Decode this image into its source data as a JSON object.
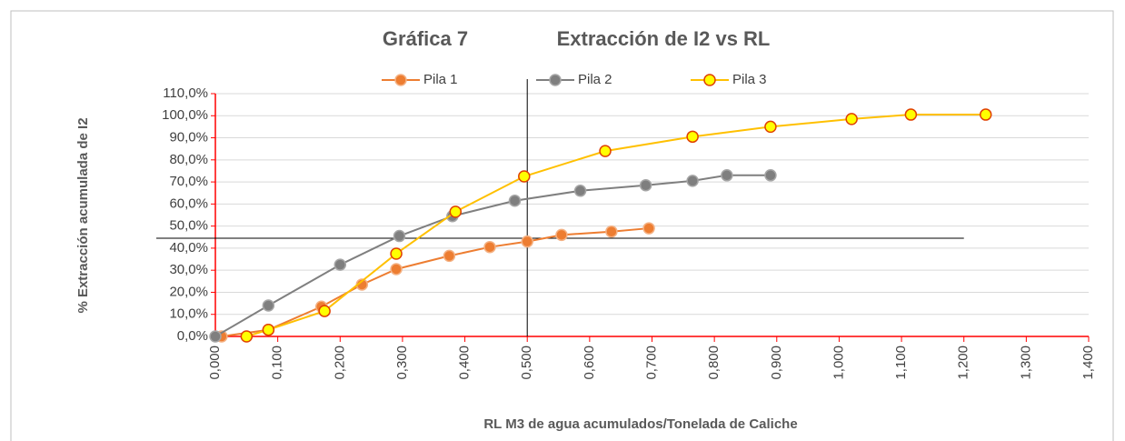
{
  "chart_data": {
    "type": "line",
    "chart_number": "Gráfica 7",
    "title": "Extracción de I2 vs RL",
    "xlabel": "RL   M3  de agua acumulados/Tonelada de Caliche",
    "ylabel": "% Extracción acumulada de I2",
    "xlim": [
      0,
      1.4
    ],
    "xticks": [
      {
        "value": 0,
        "label": "0,000"
      },
      {
        "value": 0.1,
        "label": "0,100"
      },
      {
        "value": 0.2,
        "label": "0,200"
      },
      {
        "value": 0.3,
        "label": "0,300"
      },
      {
        "value": 0.4,
        "label": "0,400"
      },
      {
        "value": 0.5,
        "label": "0,500"
      },
      {
        "value": 0.6,
        "label": "0,600"
      },
      {
        "value": 0.7,
        "label": "0,700"
      },
      {
        "value": 0.8,
        "label": "0,800"
      },
      {
        "value": 0.9,
        "label": "0,900"
      },
      {
        "value": 1.0,
        "label": "1,000"
      },
      {
        "value": 1.1,
        "label": "1,100"
      },
      {
        "value": 1.2,
        "label": "1,200"
      },
      {
        "value": 1.3,
        "label": "1,300"
      },
      {
        "value": 1.4,
        "label": "1,400"
      }
    ],
    "ylim": [
      0,
      110
    ],
    "yticks": [
      {
        "value": 0,
        "label": "0,0%"
      },
      {
        "value": 10,
        "label": "10,0%"
      },
      {
        "value": 20,
        "label": "20,0%"
      },
      {
        "value": 30,
        "label": "30,0%"
      },
      {
        "value": 40,
        "label": "40,0%"
      },
      {
        "value": 50,
        "label": "50,0%"
      },
      {
        "value": 60,
        "label": "60,0%"
      },
      {
        "value": 70,
        "label": "70,0%"
      },
      {
        "value": 80,
        "label": "80,0%"
      },
      {
        "value": 90,
        "label": "90,0%"
      },
      {
        "value": 100,
        "label": "100,0%"
      },
      {
        "value": 110,
        "label": "110,0%"
      }
    ],
    "grid": true,
    "axis_color": "#ff0000",
    "legend": "top",
    "reference_lines": {
      "x": 0.5,
      "y": 44.5
    },
    "series": [
      {
        "name": "Pila 1",
        "color": "#ed7d31",
        "marker_color": "#ed7d31",
        "marker_edge": "#f4b183",
        "x": [
          0.01,
          0.085,
          0.17,
          0.235,
          0.29,
          0.375,
          0.44,
          0.5,
          0.555,
          0.635,
          0.695
        ],
        "values": [
          0,
          3,
          13.5,
          23.5,
          30.5,
          36.5,
          40.5,
          43,
          46,
          47.5,
          49
        ]
      },
      {
        "name": "Pila 2",
        "color": "#7f7f7f",
        "marker_color": "#7f7f7f",
        "marker_edge": "#a6a6a6",
        "x": [
          0.0,
          0.085,
          0.2,
          0.295,
          0.38,
          0.48,
          0.585,
          0.69,
          0.765,
          0.82,
          0.89
        ],
        "values": [
          0,
          14,
          32.5,
          45.5,
          54.5,
          61.5,
          66,
          68.5,
          70.5,
          73,
          73
        ]
      },
      {
        "name": "Pila 3",
        "color": "#ffc000",
        "marker_color": "#ffff00",
        "marker_edge": "#e04000",
        "x": [
          0.05,
          0.085,
          0.175,
          0.29,
          0.385,
          0.495,
          0.625,
          0.765,
          0.89,
          1.02,
          1.115,
          1.235
        ],
        "values": [
          0,
          3,
          11.5,
          37.5,
          56.5,
          72.5,
          84,
          90.5,
          95,
          98.5,
          100.5,
          100.5
        ]
      }
    ]
  }
}
